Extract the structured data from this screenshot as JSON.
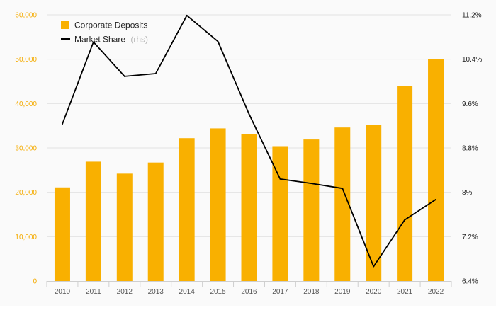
{
  "chart_data": {
    "type": "bar",
    "categories": [
      "2010",
      "2011",
      "2012",
      "2013",
      "2014",
      "2015",
      "2016",
      "2017",
      "2018",
      "2019",
      "2020",
      "2021",
      "2022"
    ],
    "series": [
      {
        "name": "Corporate Deposits",
        "type": "bar",
        "axis": "left",
        "color": "#f9b000",
        "values": [
          21100,
          26900,
          24200,
          26700,
          32200,
          34400,
          33100,
          30400,
          31900,
          34600,
          35200,
          44000,
          50000
        ]
      },
      {
        "name": "Market Share",
        "name_suffix": "(rhs)",
        "type": "line",
        "axis": "right",
        "color": "#000000",
        "values": [
          9.23,
          10.71,
          10.09,
          10.14,
          11.19,
          10.72,
          9.41,
          8.24,
          8.16,
          8.07,
          6.66,
          7.5,
          7.87
        ]
      }
    ],
    "y_left": {
      "range": [
        0,
        60000
      ],
      "ticks": [
        0,
        10000,
        20000,
        30000,
        40000,
        50000,
        60000
      ],
      "tick_labels": [
        "0",
        "10,000",
        "20,000",
        "30,000",
        "40,000",
        "50,000",
        "60,000"
      ],
      "label_color": "#f4ab00"
    },
    "y_right": {
      "range": [
        6.4,
        11.2
      ],
      "ticks": [
        6.4,
        7.2,
        8.0,
        8.8,
        9.6,
        10.4,
        11.2
      ],
      "tick_labels": [
        "6.4%",
        "7.2%",
        "8%",
        "8.8%",
        "9.6%",
        "10.4%",
        "11.2%"
      ]
    },
    "grid": true,
    "legend_position": "top-left"
  }
}
